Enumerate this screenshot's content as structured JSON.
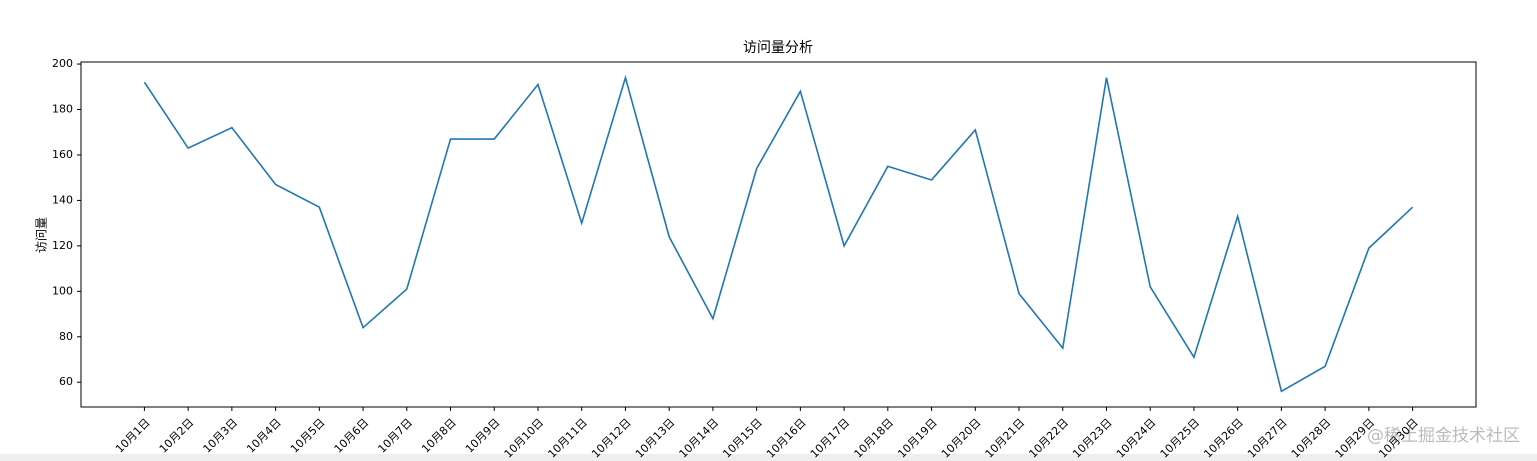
{
  "chart_data": {
    "type": "line",
    "title": "访问量分析",
    "y_label": "访问量",
    "categories": [
      "10月1日",
      "10月2日",
      "10月3日",
      "10月4日",
      "10月5日",
      "10月6日",
      "10月7日",
      "10月8日",
      "10月9日",
      "10月10日",
      "10月11日",
      "10月12日",
      "10月13日",
      "10月14日",
      "10月15日",
      "10月16日",
      "10月17日",
      "10月18日",
      "10月19日",
      "10月20日",
      "10月21日",
      "10月22日",
      "10月23日",
      "10月24日",
      "10月25日",
      "10月26日",
      "10月27日",
      "10月28日",
      "10月29日",
      "10月30日"
    ],
    "series": [
      {
        "name": "访问量",
        "color": "#1f77b4",
        "values": [
          192,
          163,
          172,
          147,
          137,
          84,
          101,
          167,
          167,
          191,
          130,
          194,
          124,
          88,
          154,
          188,
          120,
          155,
          149,
          171,
          99,
          75,
          194,
          102,
          71,
          133,
          56,
          67,
          119,
          137
        ]
      }
    ],
    "ylim": [
      49.1,
      200.9
    ],
    "yticks": [
      60,
      80,
      100,
      120,
      140,
      160,
      180,
      200
    ],
    "watermark": "@稀土掘金技术社区"
  }
}
